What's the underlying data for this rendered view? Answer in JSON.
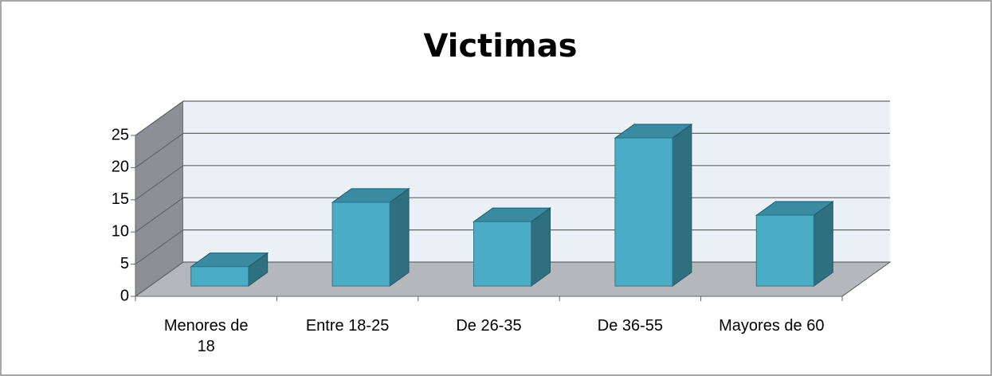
{
  "chart_data": {
    "type": "bar3d",
    "title": "Victimas",
    "categories": [
      "Menores de 18",
      "Entre 18-25",
      "De 26-35",
      "De 36-55",
      "Mayores de 60"
    ],
    "values": [
      3,
      13,
      10,
      23,
      11
    ],
    "color": "#4bacc6",
    "ylim": [
      0,
      25
    ],
    "yticks": [
      0,
      5,
      10,
      15,
      20,
      25
    ],
    "grid": true
  }
}
